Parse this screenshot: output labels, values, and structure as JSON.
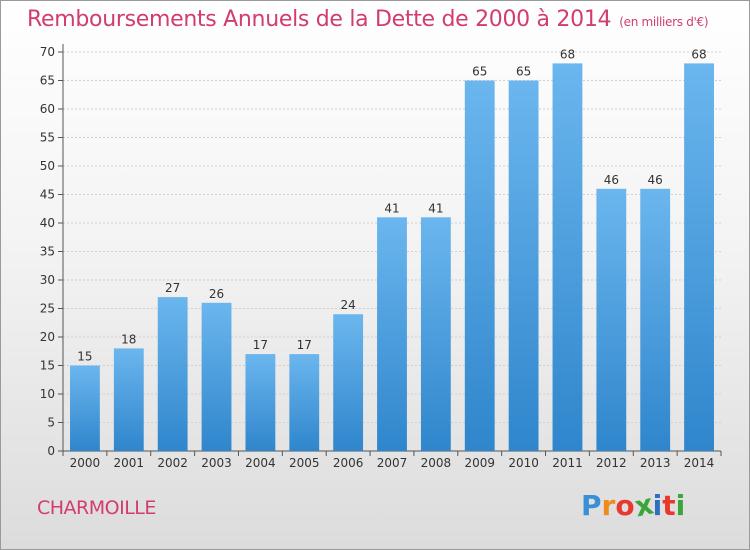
{
  "header": {
    "title": "Remboursements Annuels de la Dette de 2000 à 2014",
    "unit": "(en milliers d'€)"
  },
  "footer": {
    "commune": "CHARMOILLE",
    "logo_letters": [
      "P",
      "r",
      "o",
      "x",
      "i",
      "t",
      "i"
    ],
    "logo_colors": [
      "#3a8fd6",
      "#f08a1c",
      "#e8392f",
      "#3aa63a",
      "#2f6fc0",
      "#e8392f",
      "#3aa63a"
    ]
  },
  "colors": {
    "bar_light": "#6bb6ee",
    "bar_dark": "#2f86cc",
    "axis": "#555555",
    "grid": "#d0d0d0",
    "title": "#d23c6e"
  },
  "chart_data": {
    "type": "bar",
    "title": "Remboursements Annuels de la Dette de 2000 à 2014",
    "xlabel": "",
    "ylabel": "",
    "ylim": [
      0,
      70
    ],
    "yticks": [
      0,
      5,
      10,
      15,
      20,
      25,
      30,
      35,
      40,
      45,
      50,
      55,
      60,
      65,
      70
    ],
    "grid": true,
    "categories": [
      "2000",
      "2001",
      "2002",
      "2003",
      "2004",
      "2005",
      "2006",
      "2007",
      "2008",
      "2009",
      "2010",
      "2011",
      "2012",
      "2013",
      "2014"
    ],
    "values": [
      15,
      18,
      27,
      26,
      17,
      17,
      24,
      41,
      41,
      65,
      65,
      68,
      46,
      46,
      68
    ]
  }
}
